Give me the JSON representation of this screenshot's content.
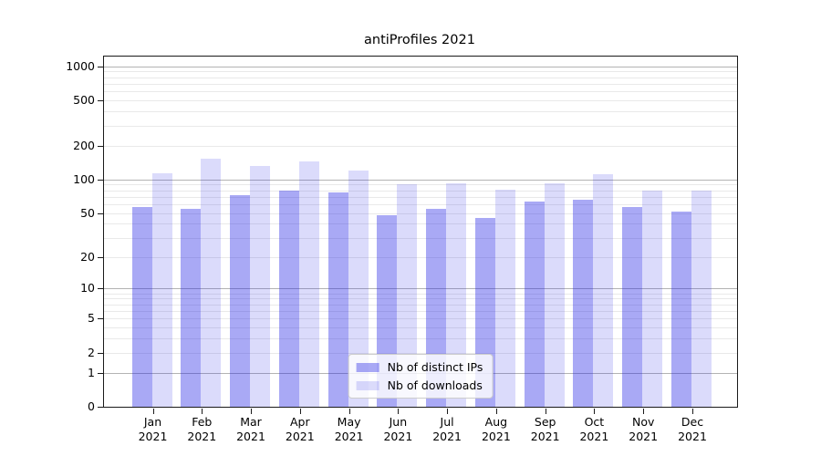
{
  "chart_data": {
    "type": "bar",
    "title": "antiProfiles 2021",
    "y_scale": "symlog",
    "xlabel": "",
    "ylabel": "",
    "ylim": [
      0,
      1220
    ],
    "y_ticks": [
      1000,
      500,
      200,
      100,
      50,
      20,
      10,
      5,
      2,
      1,
      0
    ],
    "grid": true,
    "legend_position": "lower center",
    "categories": [
      "Jan 2021",
      "Feb 2021",
      "Mar 2021",
      "Apr 2021",
      "May 2021",
      "Jun 2021",
      "Jul 2021",
      "Aug 2021",
      "Sep 2021",
      "Oct 2021",
      "Nov 2021",
      "Dec 2021"
    ],
    "series": [
      {
        "name": "Nb of distinct IPs",
        "color": "rgba(30,30,228,0.38)",
        "values": [
          57,
          55,
          72,
          80,
          76,
          48,
          55,
          45,
          63,
          66,
          57,
          52
        ]
      },
      {
        "name": "Nb of downloads",
        "color": "rgba(30,30,228,0.16)",
        "values": [
          113,
          152,
          131,
          145,
          120,
          91,
          92,
          81,
          93,
          111,
          80,
          79
        ]
      }
    ],
    "colors": {
      "bar_distinct_ips_on_white": "#aaaaf5",
      "bar_downloads_on_white": "#dbdbfb",
      "major_gridline": "#b3b3b3",
      "minor_gridline": "#e9e9e9",
      "axis": "#1a1a1a"
    }
  }
}
